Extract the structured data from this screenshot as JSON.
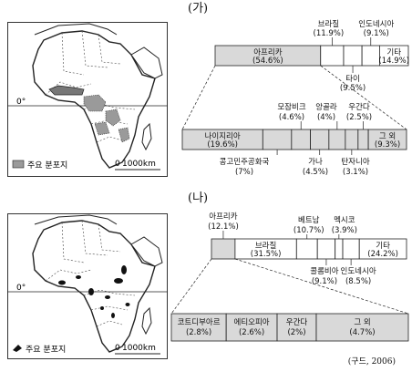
{
  "panels": [
    {
      "label": "(가)",
      "map": {
        "equator_label": "0°",
        "legend_label": "주요 분포지",
        "scale_zero": "0",
        "scale_label": "1000km"
      },
      "chart_data": {
        "type": "stacked-bar",
        "main_bar": [
          {
            "name": "아프리카",
            "value_label": "(54.6%)",
            "value": 54.6,
            "fill": "#d9d9d9"
          },
          {
            "name": "브라질",
            "value_label": "(11.9%)",
            "value": 11.9,
            "fill": "#ffffff"
          },
          {
            "name": "타이",
            "value_label": "(9.5%)",
            "value": 9.5,
            "fill": "#ffffff"
          },
          {
            "name": "인도네시아",
            "value_label": "(9.1%)",
            "value": 9.1,
            "fill": "#ffffff"
          },
          {
            "name": "기타",
            "value_label": "(14.9%)",
            "value": 14.9,
            "fill": "#ffffff"
          }
        ],
        "detail_bar": [
          {
            "name": "나이지리아",
            "value_label": "(19.6%)",
            "value": 19.6
          },
          {
            "name": "콩고민주공화국",
            "value_label": "(7%)",
            "value": 7
          },
          {
            "name": "모잠비크",
            "value_label": "(4.6%)",
            "value": 4.6
          },
          {
            "name": "가나",
            "value_label": "(4.5%)",
            "value": 4.5
          },
          {
            "name": "앙골라",
            "value_label": "(4%)",
            "value": 4
          },
          {
            "name": "탄자니아",
            "value_label": "(3.1%)",
            "value": 3.1
          },
          {
            "name": "우간다",
            "value_label": "(2.5%)",
            "value": 2.5
          },
          {
            "name": "그 외",
            "value_label": "(9.3%)",
            "value": 9.3
          }
        ]
      }
    },
    {
      "label": "(나)",
      "map": {
        "equator_label": "0°",
        "legend_label": "주요 분포지",
        "scale_zero": "0",
        "scale_label": "1000km"
      },
      "chart_data": {
        "type": "stacked-bar",
        "main_bar": [
          {
            "name": "아프리카",
            "value_label": "(12.1%)",
            "value": 12.1,
            "fill": "#d9d9d9"
          },
          {
            "name": "브라질",
            "value_label": "(31.5%)",
            "value": 31.5,
            "fill": "#ffffff"
          },
          {
            "name": "베트남",
            "value_label": "(10.7%)",
            "value": 10.7,
            "fill": "#ffffff"
          },
          {
            "name": "콜롬비아",
            "value_label": "(9.1%)",
            "value": 9.1,
            "fill": "#ffffff"
          },
          {
            "name": "멕시코",
            "value_label": "(3.9%)",
            "value": 3.9,
            "fill": "#ffffff"
          },
          {
            "name": "인도네시아",
            "value_label": "(8.5%)",
            "value": 8.5,
            "fill": "#ffffff"
          },
          {
            "name": "기타",
            "value_label": "(24.2%)",
            "value": 24.2,
            "fill": "#ffffff"
          }
        ],
        "detail_bar": [
          {
            "name": "코트디부아르",
            "value_label": "(2.8%)",
            "value": 2.8
          },
          {
            "name": "에티오피아",
            "value_label": "(2.6%)",
            "value": 2.6
          },
          {
            "name": "우간다",
            "value_label": "(2%)",
            "value": 2
          },
          {
            "name": "그 외",
            "value_label": "(4.7%)",
            "value": 4.7
          }
        ]
      }
    }
  ],
  "source": "(구드, 2006)"
}
